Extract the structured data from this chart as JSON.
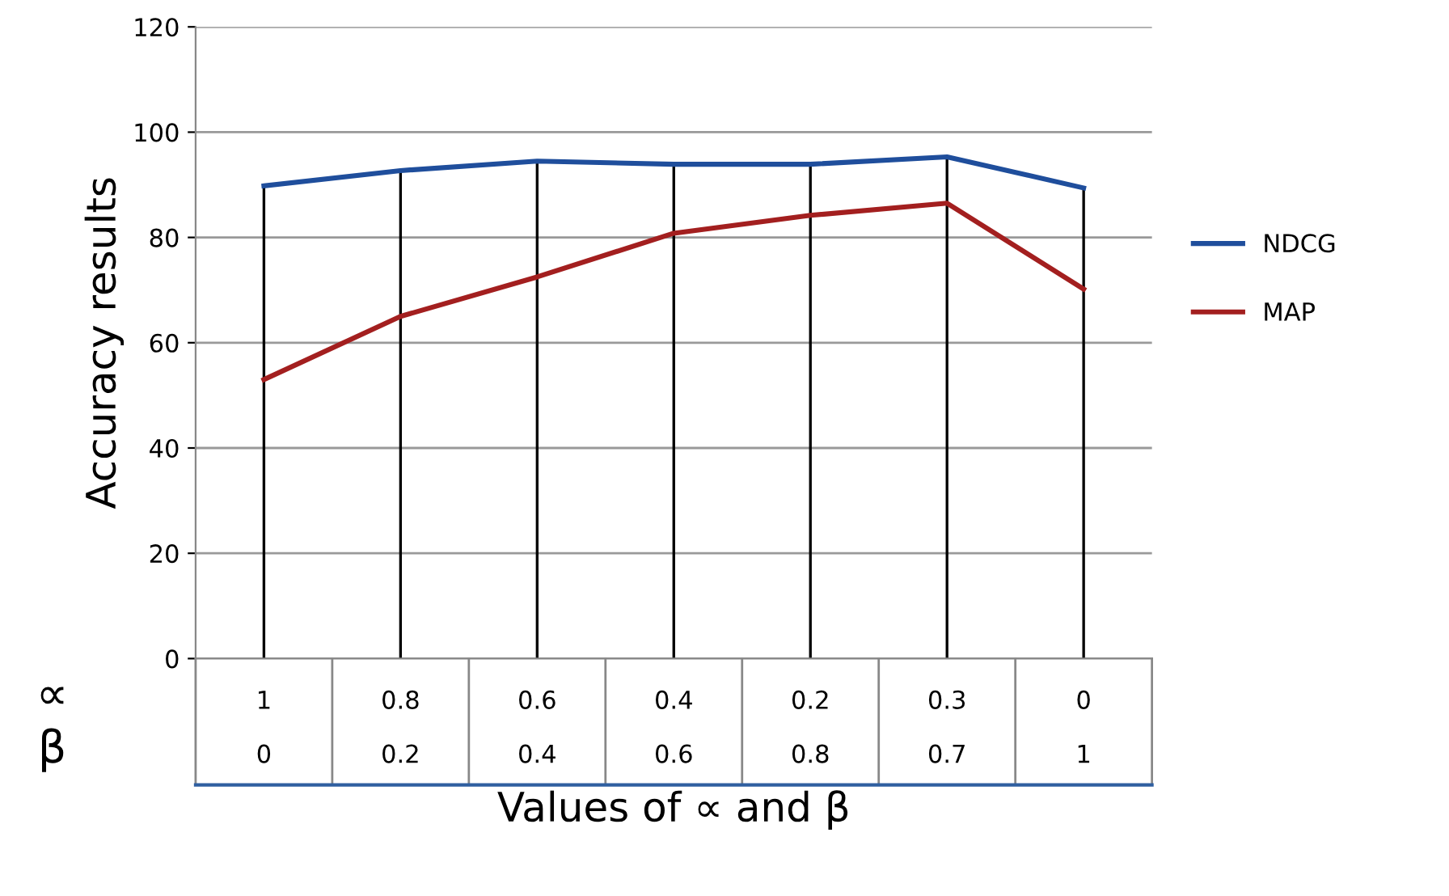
{
  "chart_data": {
    "type": "line",
    "xlabel": "Values of ∝ and β",
    "ylabel": "Accuracy results",
    "categories": [
      "1\n0",
      "0.8\n0.2",
      "0.6\n0.4",
      "0.4\n0.6",
      "0.2\n0.8",
      "0.3\n0.7",
      "0\n1"
    ],
    "series": [
      {
        "name": "NDCG",
        "color": "#1f4e9c",
        "values": [
          89.8,
          92.7,
          94.5,
          93.9,
          93.9,
          95.3,
          89.4
        ]
      },
      {
        "name": "MAP",
        "color": "#a31f1f",
        "values": [
          53,
          65,
          72.5,
          80.8,
          84.2,
          86.5,
          70.2
        ]
      }
    ],
    "annotations": [
      "∝",
      "β"
    ],
    "ylim": [
      0,
      120
    ],
    "yticks": [
      0,
      20,
      40,
      60,
      80,
      100,
      120
    ],
    "grid": true,
    "legend": "right",
    "marker": "none",
    "line_style": "solid"
  }
}
